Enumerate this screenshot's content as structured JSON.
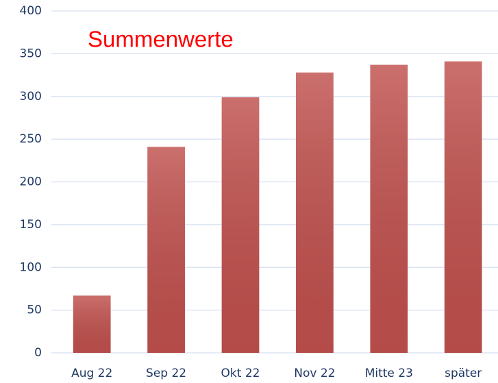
{
  "chart_data": {
    "type": "bar",
    "title": "Summenwerte",
    "categories": [
      "Aug 22",
      "Sep 22",
      "Okt 22",
      "Nov 22",
      "Mitte 23",
      "später"
    ],
    "values": [
      67,
      241,
      299,
      328,
      337,
      341
    ],
    "color": "#c0504d",
    "ylim": [
      0,
      400
    ],
    "yticks": [
      0,
      50,
      100,
      150,
      200,
      250,
      300,
      350,
      400
    ],
    "grid": true
  }
}
